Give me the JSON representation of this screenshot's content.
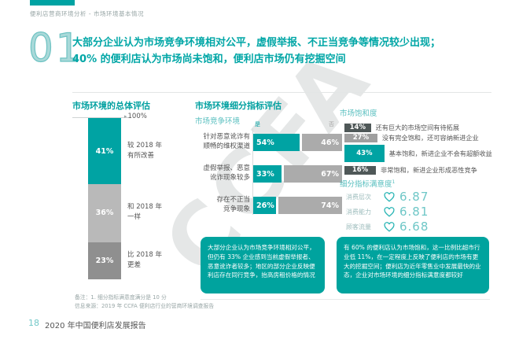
{
  "page": {
    "breadcrumb": "便利店营商环境分析 - 市场环境基本情况",
    "section_number": "01",
    "headline": "大部分企业认为市场竞争环境相对公平，虚假举报、不正当竞争等情况较少出现；\n40% 的便利店认为市场尚未饱和，便利店市场仍有挖掘空间",
    "watermark": "CCFA",
    "notes": {
      "note1": "备注：1. 细分指标满意度满分是 10 分",
      "note2": "信息来源：2019 年 CCFA 便利店行业的营商环境调查报告"
    },
    "footer": {
      "page_number": "18",
      "report_title": "2020 年中国便利店发展报告"
    },
    "colors": {
      "teal": "#00A3A3",
      "teal_light": "#58BFBF",
      "gray_light": "#B9B9B9",
      "gray_dark": "#8F8F8F",
      "charcoal": "#4F5858"
    }
  },
  "overall_chart": {
    "title": "市场环境的总体评估",
    "axis_arrow": "▸",
    "axis_top_label": "100%",
    "segments": [
      {
        "value": 41,
        "pct": "41%",
        "label": "较 2018 年\n有所改善"
      },
      {
        "value": 36,
        "pct": "36%",
        "label": "和 2018 年\n一样"
      },
      {
        "value": 23,
        "pct": "23%",
        "label": "比 2018 年\n更差"
      }
    ]
  },
  "detail": {
    "title": "市场环境细分指标评估",
    "competition": {
      "title": "市场竞争环境",
      "legend": {
        "yes": "是",
        "no": "否"
      },
      "rows": [
        {
          "label": "针对恶意讹诈有\n顺畅的维权渠道",
          "yes": 54,
          "no": 46,
          "yes_pct": "54%",
          "no_pct": "46%"
        },
        {
          "label": "虚假举报、恶意\n讹诈现象较多",
          "yes": 33,
          "no": 67,
          "yes_pct": "33%",
          "no_pct": "67%"
        },
        {
          "label": "存在不正当\n竞争现象",
          "yes": 26,
          "no": 74,
          "yes_pct": "26%",
          "no_pct": "74%"
        }
      ],
      "note": "大部分企业认为市场竞争环境相对公平，但仍有 33% 企业感到当前虚假举报者、恶意讹诈者较多；地区的部分企业反映便利店存在同行竞争，抬高房租价格的情况"
    },
    "saturation": {
      "title": "市场饱和度",
      "rows": [
        {
          "value": 14,
          "pct": "14%",
          "label": "还有巨大的市场空间有待拓展"
        },
        {
          "value": 27,
          "pct": "27%",
          "label": "没有完全饱和，还可容纳新进企业"
        },
        {
          "value": 43,
          "pct": "43%",
          "label": "基本饱和，新进企业不会有超额收益"
        },
        {
          "value": 16,
          "pct": "16%",
          "label": "非常饱和，新进企业形成恶性竞争"
        }
      ]
    },
    "satisfaction": {
      "title": "细分指标满意度",
      "footnote_marker": "1",
      "rows": [
        {
          "label": "消费层次",
          "score": "6.87"
        },
        {
          "label": "消费能力",
          "score": "6.81"
        },
        {
          "label": "顾客流量",
          "score": "6.68"
        }
      ],
      "note": "有 60% 的便利店认为市场饱和，这一比例比超市行业低 11%，在一定程度上反映了便利店的市场有更大的挖掘空间；便利店为近年零售业中发展最快的业态，企业对市场环境的细分指标满意度都较好"
    }
  },
  "chart_data": [
    {
      "type": "bar",
      "variant": "stacked_column",
      "title": "市场环境的总体评估",
      "categories": [
        "较 2018 年有所改善",
        "和 2018 年一样",
        "比 2018 年更差"
      ],
      "values": [
        41,
        36,
        23
      ],
      "unit": "%",
      "ylim": [
        0,
        100
      ],
      "axis_top_label": "100%"
    },
    {
      "type": "bar",
      "variant": "horizontal_paired",
      "title": "市场竞争环境",
      "categories": [
        "针对恶意讹诈有顺畅的维权渠道",
        "虚假举报、恶意讹诈现象较多",
        "存在不正当竞争现象"
      ],
      "series": [
        {
          "name": "是",
          "values": [
            54,
            33,
            26
          ]
        },
        {
          "name": "否",
          "values": [
            46,
            67,
            74
          ]
        }
      ],
      "unit": "%"
    },
    {
      "type": "bar",
      "variant": "horizontal",
      "title": "市场饱和度",
      "categories": [
        "还有巨大的市场空间有待拓展",
        "没有完全饱和，还可容纳新进企业",
        "基本饱和，新进企业不会有超额收益",
        "非常饱和，新进企业形成恶性竞争"
      ],
      "values": [
        14,
        27,
        43,
        16
      ],
      "unit": "%"
    },
    {
      "type": "table",
      "title": "细分指标满意度",
      "categories": [
        "消费层次",
        "消费能力",
        "顾客流量"
      ],
      "values": [
        6.87,
        6.81,
        6.68
      ],
      "max_score": 10
    }
  ]
}
